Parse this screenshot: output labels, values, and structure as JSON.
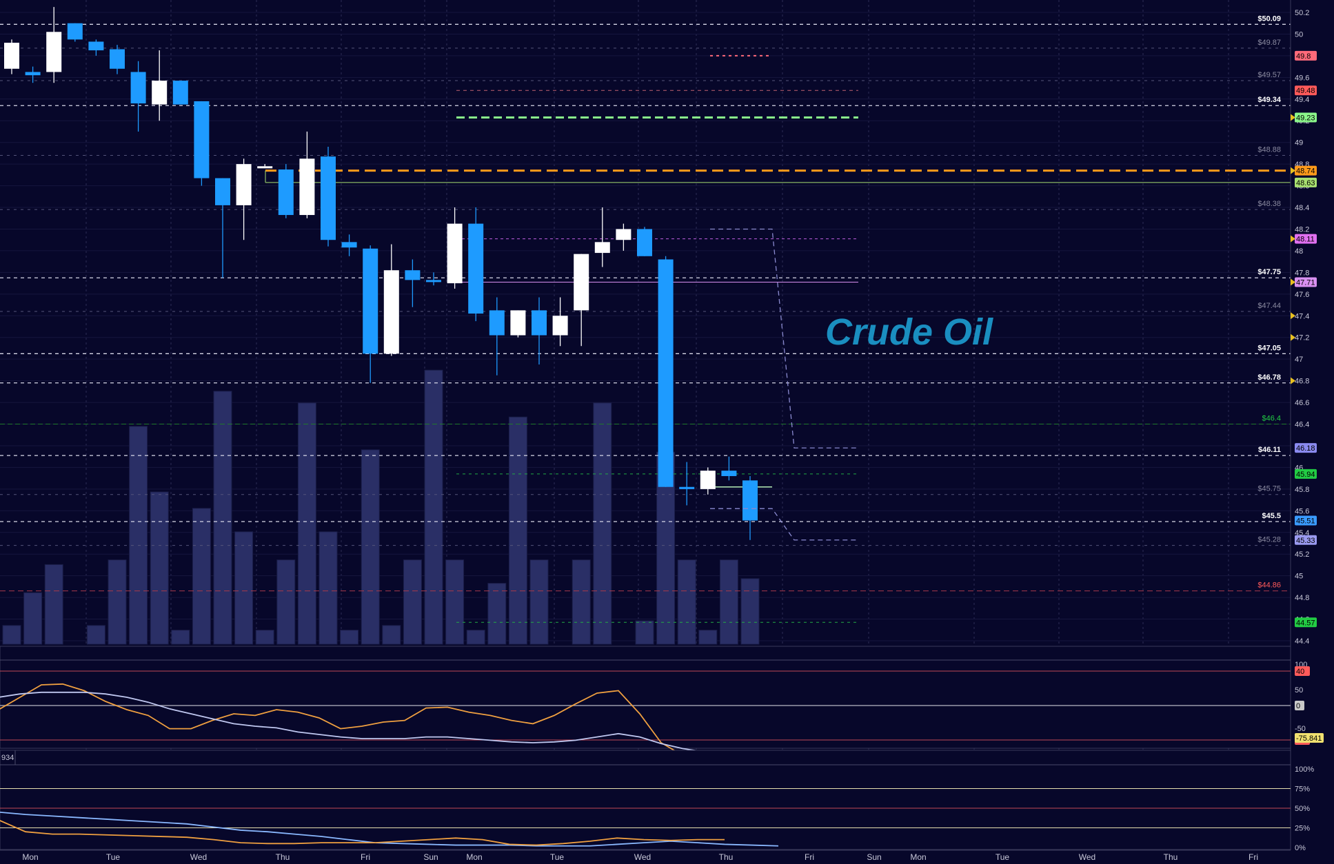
{
  "title": "Crude Oil",
  "x_labels": [
    "Mon",
    "Tue",
    "Wed",
    "Thu",
    "Fri",
    "Sun",
    "Mon",
    "Tue",
    "Wed",
    "Thu",
    "Fri",
    "Sun",
    "Mon",
    "Tue",
    "Wed",
    "Thu",
    "Fri"
  ],
  "price_axis_ticks": [
    "50.2",
    "50",
    "49.8",
    "49.6",
    "49.4",
    "49.2",
    "49",
    "48.8",
    "48.6",
    "48.4",
    "48.2",
    "48",
    "47.8",
    "47.6",
    "47.4",
    "47.2",
    "47",
    "46.8",
    "46.6",
    "46.4",
    "46.2",
    "46",
    "45.8",
    "45.6",
    "45.4",
    "45.2",
    "45",
    "44.8",
    "44.6",
    "44.4"
  ],
  "osc_axis_ticks": [
    "100",
    "50",
    "0",
    "-50"
  ],
  "pct_axis_ticks": [
    "100%",
    "75%",
    "50%",
    "25%",
    "0%"
  ],
  "lower_pane_label": "934",
  "levels": [
    {
      "label": "$50.09",
      "style": "bright"
    },
    {
      "label": "$49.87",
      "style": "dim"
    },
    {
      "label": "$49.57",
      "style": "dim"
    },
    {
      "label": "$49.34",
      "style": "bright"
    },
    {
      "label": "$48.88",
      "style": "dim"
    },
    {
      "label": "$48.38",
      "style": "dim"
    },
    {
      "label": "$47.75",
      "style": "bright"
    },
    {
      "label": "$47.44",
      "style": "dim"
    },
    {
      "label": "$47.05",
      "style": "bright"
    },
    {
      "label": "$46.78",
      "style": "bright"
    },
    {
      "label": "$46.4",
      "style": "green"
    },
    {
      "label": "$46.11",
      "style": "bright"
    },
    {
      "label": "$45.75",
      "style": "dim"
    },
    {
      "label": "$45.5",
      "style": "bright"
    },
    {
      "label": "$45.28",
      "style": "dim"
    },
    {
      "label": "$44.86",
      "style": "red"
    }
  ],
  "price_tags": [
    {
      "label": "49.8",
      "color": "#ff6a7a"
    },
    {
      "label": "49.48",
      "color": "#ff5a5a"
    },
    {
      "label": "49.23",
      "color": "#8af58a"
    },
    {
      "label": "48.74",
      "color": "#ff9a1a"
    },
    {
      "label": "48.63",
      "color": "#a8e070"
    },
    {
      "label": "48.11",
      "color": "#e070f0"
    },
    {
      "label": "47.71",
      "color": "#d890f0"
    },
    {
      "label": "46.18",
      "color": "#8a8af0"
    },
    {
      "label": "45.94",
      "color": "#22cc44"
    },
    {
      "label": "45.51",
      "color": "#3a9aff"
    },
    {
      "label": "45.33",
      "color": "#9a9af0"
    },
    {
      "label": "44.57",
      "color": "#22cc44"
    }
  ],
  "osc_tags": [
    {
      "label": "40",
      "color": "#ff5a5a"
    },
    {
      "label": "0",
      "color": "#c8c8c8"
    },
    {
      "label": "-40",
      "color": "#ff5a5a"
    },
    {
      "label": "-75.841",
      "color": "#f0e070"
    }
  ],
  "colors": {
    "background": "#07072a",
    "up_candle": "#ffffff",
    "down_candle": "#1e9bff",
    "volume": "#2a2f66",
    "grid": "#3a3a5a"
  },
  "chart_data": {
    "type": "candlestick",
    "title": "Crude Oil",
    "ylim": [
      44.4,
      50.25
    ],
    "candles": [
      {
        "open": 49.68,
        "high": 49.95,
        "low": 49.63,
        "close": 49.92
      },
      {
        "open": 49.65,
        "high": 49.7,
        "low": 49.55,
        "close": 49.62
      },
      {
        "open": 49.65,
        "high": 50.25,
        "low": 49.55,
        "close": 50.02
      },
      {
        "open": 50.1,
        "high": 50.1,
        "low": 49.93,
        "close": 49.95
      },
      {
        "open": 49.93,
        "high": 49.95,
        "low": 49.8,
        "close": 49.85
      },
      {
        "open": 49.86,
        "high": 49.9,
        "low": 49.63,
        "close": 49.68
      },
      {
        "open": 49.65,
        "high": 49.75,
        "low": 49.1,
        "close": 49.36
      },
      {
        "open": 49.35,
        "high": 49.85,
        "low": 49.2,
        "close": 49.57
      },
      {
        "open": 49.57,
        "high": 49.57,
        "low": 49.35,
        "close": 49.35
      },
      {
        "open": 49.38,
        "high": 49.38,
        "low": 48.6,
        "close": 48.67
      },
      {
        "open": 48.67,
        "high": 48.67,
        "low": 47.75,
        "close": 48.42
      },
      {
        "open": 48.42,
        "high": 48.85,
        "low": 48.1,
        "close": 48.8
      },
      {
        "open": 48.78,
        "high": 48.8,
        "low": 48.78,
        "close": 48.78
      },
      {
        "open": 48.75,
        "high": 48.8,
        "low": 48.3,
        "close": 48.33
      },
      {
        "open": 48.33,
        "high": 49.1,
        "low": 48.3,
        "close": 48.85
      },
      {
        "open": 48.87,
        "high": 48.96,
        "low": 48.04,
        "close": 48.1
      },
      {
        "open": 48.08,
        "high": 48.15,
        "low": 47.95,
        "close": 48.03
      },
      {
        "open": 48.02,
        "high": 48.05,
        "low": 46.78,
        "close": 47.05
      },
      {
        "open": 47.05,
        "high": 48.06,
        "low": 47.03,
        "close": 47.82
      },
      {
        "open": 47.82,
        "high": 47.92,
        "low": 47.48,
        "close": 47.73
      },
      {
        "open": 47.73,
        "high": 47.8,
        "low": 47.68,
        "close": 47.72
      },
      {
        "open": 47.7,
        "high": 48.4,
        "low": 47.65,
        "close": 48.25
      },
      {
        "open": 48.25,
        "high": 48.4,
        "low": 47.35,
        "close": 47.42
      },
      {
        "open": 47.45,
        "high": 47.57,
        "low": 46.85,
        "close": 47.22
      },
      {
        "open": 47.22,
        "high": 47.45,
        "low": 47.2,
        "close": 47.45
      },
      {
        "open": 47.45,
        "high": 47.57,
        "low": 46.95,
        "close": 47.22
      },
      {
        "open": 47.22,
        "high": 47.57,
        "low": 47.12,
        "close": 47.4
      },
      {
        "open": 47.45,
        "high": 47.97,
        "low": 47.12,
        "close": 47.97
      },
      {
        "open": 47.98,
        "high": 48.4,
        "low": 47.85,
        "close": 48.08
      },
      {
        "open": 48.1,
        "high": 48.25,
        "low": 48.0,
        "close": 48.2
      },
      {
        "open": 48.2,
        "high": 48.22,
        "low": 47.95,
        "close": 47.95
      },
      {
        "open": 47.92,
        "high": 47.95,
        "low": 45.82,
        "close": 45.82
      },
      {
        "open": 45.82,
        "high": 46.05,
        "low": 45.65,
        "close": 45.8
      },
      {
        "open": 45.8,
        "high": 46.0,
        "low": 45.75,
        "close": 45.97
      },
      {
        "open": 45.97,
        "high": 46.1,
        "low": 45.88,
        "close": 45.92
      },
      {
        "open": 45.88,
        "high": 45.92,
        "low": 45.33,
        "close": 45.51
      }
    ],
    "volume": [
      8,
      22,
      34,
      0,
      8,
      36,
      48,
      65,
      6,
      58,
      6,
      0,
      6,
      0,
      0,
      6,
      0,
      0,
      0,
      0,
      0,
      0,
      0,
      26,
      6,
      0,
      0,
      6,
      6,
      0,
      10,
      0,
      0,
      0,
      0,
      0
    ],
    "volume_bars": [
      8,
      22,
      34,
      0,
      8,
      36,
      93,
      65,
      6,
      58,
      108,
      48,
      6,
      36,
      103,
      48,
      6,
      83,
      8,
      36,
      117,
      36,
      6,
      26,
      97,
      36,
      0,
      36,
      103,
      0,
      10,
      82,
      36,
      6,
      36,
      28
    ],
    "oscillator": {
      "ylim": [
        -75,
        100
      ],
      "series": [
        {
          "color": "#f0a040",
          "values": [
            -5,
            10,
            25,
            26,
            18,
            5,
            -5,
            -12,
            -28,
            -28,
            -18,
            -10,
            -12,
            -5,
            -8,
            -15,
            -28,
            -25,
            -20,
            -18,
            -3,
            -2,
            -8,
            -12,
            -18,
            -22,
            -12,
            2,
            15,
            18,
            -10,
            -45,
            -60,
            -68,
            -72
          ]
        },
        {
          "color": "#c0c8f0",
          "values": [
            10,
            14,
            16,
            16,
            16,
            14,
            10,
            4,
            -4,
            -10,
            -16,
            -22,
            -25,
            -27,
            -32,
            -35,
            -38,
            -40,
            -40,
            -40,
            -38,
            -38,
            -40,
            -42,
            -44,
            -45,
            -44,
            -42,
            -38,
            -34,
            -38,
            -46,
            -52,
            -56,
            -60
          ]
        }
      ]
    },
    "percent": {
      "ylim": [
        0,
        100
      ],
      "series": [
        {
          "color": "#8ab8ff",
          "values": [
            45,
            42,
            40,
            38,
            36,
            34,
            32,
            30,
            26,
            22,
            20,
            17,
            14,
            10,
            6,
            5,
            4,
            3,
            3,
            3,
            2,
            2,
            2,
            4,
            6,
            8,
            6,
            4,
            3,
            2
          ]
        },
        {
          "color": "#f0a040",
          "values": [
            35,
            20,
            17,
            17,
            16,
            15,
            14,
            13,
            10,
            6,
            5,
            5,
            6,
            6,
            6,
            8,
            10,
            12,
            10,
            4,
            3,
            5,
            8,
            12,
            10,
            9,
            10,
            10
          ]
        }
      ]
    }
  }
}
